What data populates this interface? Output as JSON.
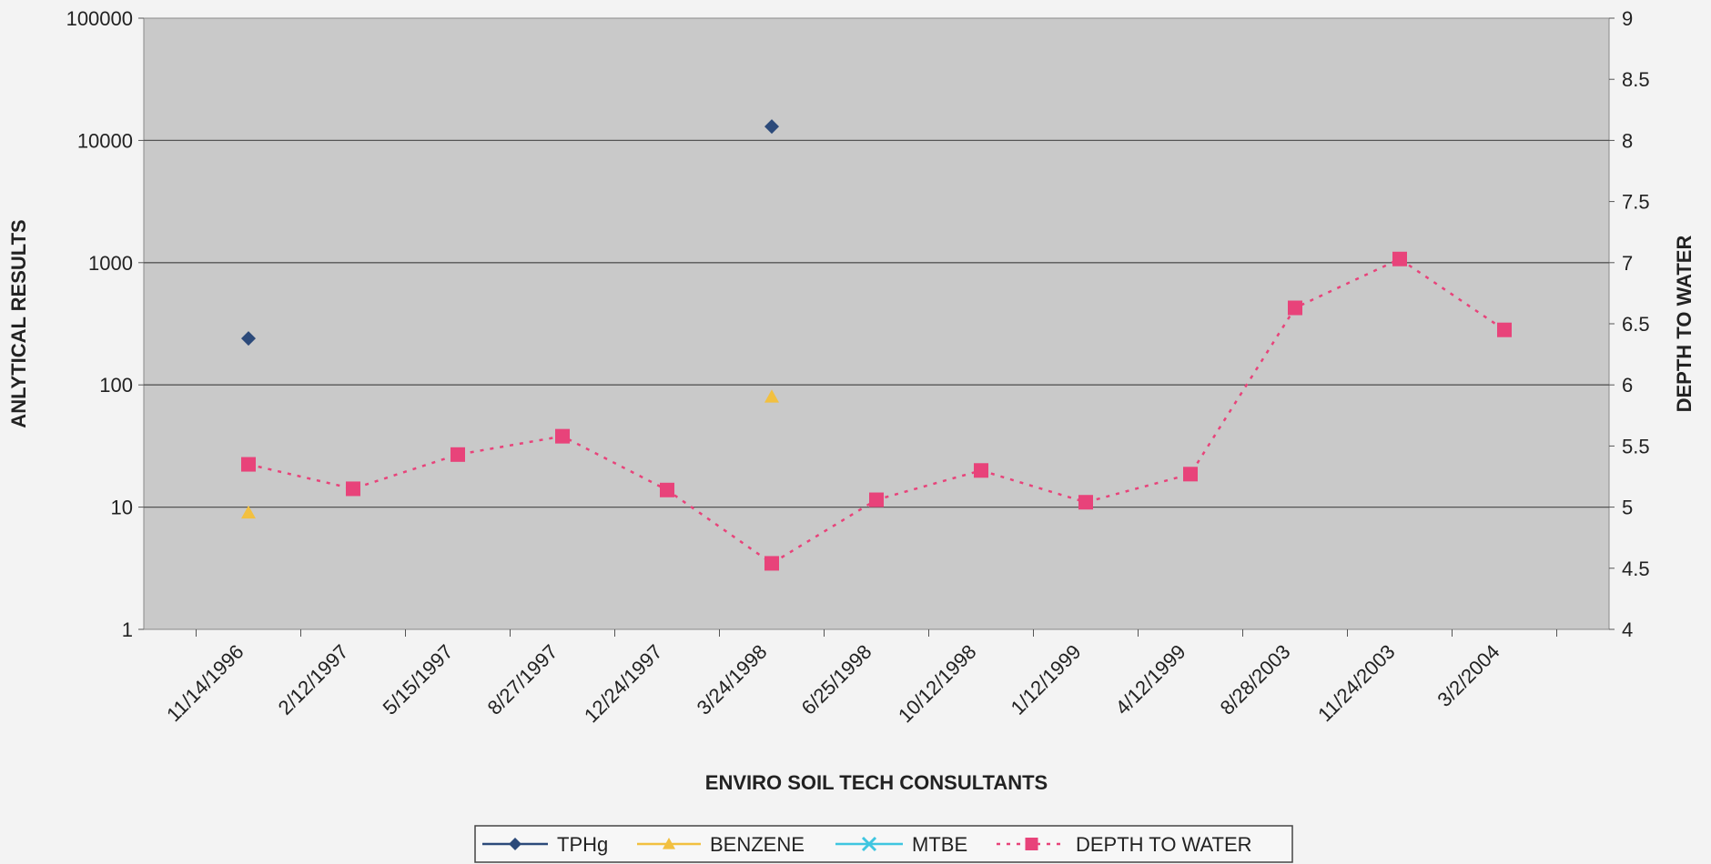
{
  "chart_data": {
    "type": "line",
    "categories": [
      "11/14/1996",
      "2/12/1997",
      "5/15/1997",
      "8/27/1997",
      "12/24/1997",
      "3/24/1998",
      "6/25/1998",
      "10/12/1998",
      "1/12/1999",
      "4/12/1999",
      "8/28/2003",
      "11/24/2003",
      "3/2/2004"
    ],
    "y_left": {
      "label": "ANLYTICAL RESULTS",
      "scale": "log",
      "range": [
        1,
        100000
      ],
      "ticks": [
        "1",
        "10",
        "100",
        "1000",
        "10000",
        "100000"
      ]
    },
    "y_right": {
      "label": "DEPTH TO WATER",
      "scale": "linear",
      "range": [
        4,
        9
      ],
      "ticks": [
        "4",
        "4.5",
        "5",
        "5.5",
        "6",
        "6.5",
        "7",
        "7.5",
        "8",
        "8.5",
        "9"
      ]
    },
    "xlabel": "ENVIRO SOIL TECH CONSULTANTS",
    "grid": true,
    "legend_position": "bottom",
    "series": [
      {
        "name": "TPHg",
        "axis": "left",
        "color": "#2c4a7a",
        "marker": "diamond",
        "values": [
          240,
          null,
          null,
          null,
          null,
          13000,
          null,
          null,
          null,
          null,
          null,
          null,
          null
        ]
      },
      {
        "name": "BENZENE",
        "axis": "left",
        "color": "#f2c040",
        "marker": "triangle",
        "values": [
          9,
          null,
          null,
          null,
          null,
          80,
          null,
          null,
          null,
          null,
          null,
          null,
          null
        ]
      },
      {
        "name": "MTBE",
        "axis": "left",
        "color": "#3fc6e0",
        "marker": "x",
        "values": [
          null,
          null,
          null,
          null,
          null,
          null,
          null,
          null,
          null,
          null,
          null,
          null,
          null
        ]
      },
      {
        "name": "DEPTH TO WATER",
        "axis": "right",
        "color": "#e8437a",
        "marker": "square",
        "dashed": true,
        "values": [
          5.35,
          5.15,
          5.43,
          5.58,
          5.14,
          4.54,
          5.06,
          5.3,
          5.04,
          5.27,
          6.63,
          7.03,
          6.45
        ]
      }
    ]
  }
}
